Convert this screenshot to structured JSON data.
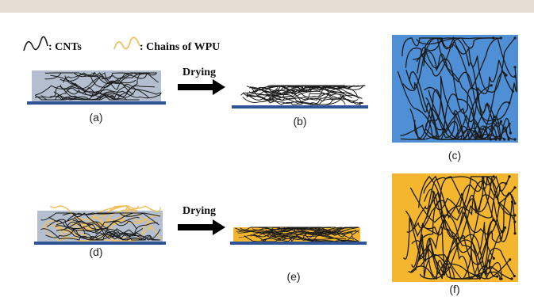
{
  "legend": {
    "cnt_label": ": CNTs",
    "wpu_label": ": Chains of WPU"
  },
  "arrows": {
    "top_label": "Drying",
    "bottom_label": "Drying"
  },
  "panels": {
    "a": "(a)",
    "b": "(b)",
    "c": "(c)",
    "d": "(d)",
    "e": "(e)",
    "f": "(f)"
  },
  "colors": {
    "cnt": "#1a1a1a",
    "wpu": "#f0c060",
    "film_gray": "#b3bfcf",
    "substrate": "#2f5496",
    "panel_c_fill": "#4f8fd6",
    "panel_f_fill": "#f5b62f",
    "film_e_fill": "#f5b62f",
    "top_band": "#e4ddd2"
  }
}
